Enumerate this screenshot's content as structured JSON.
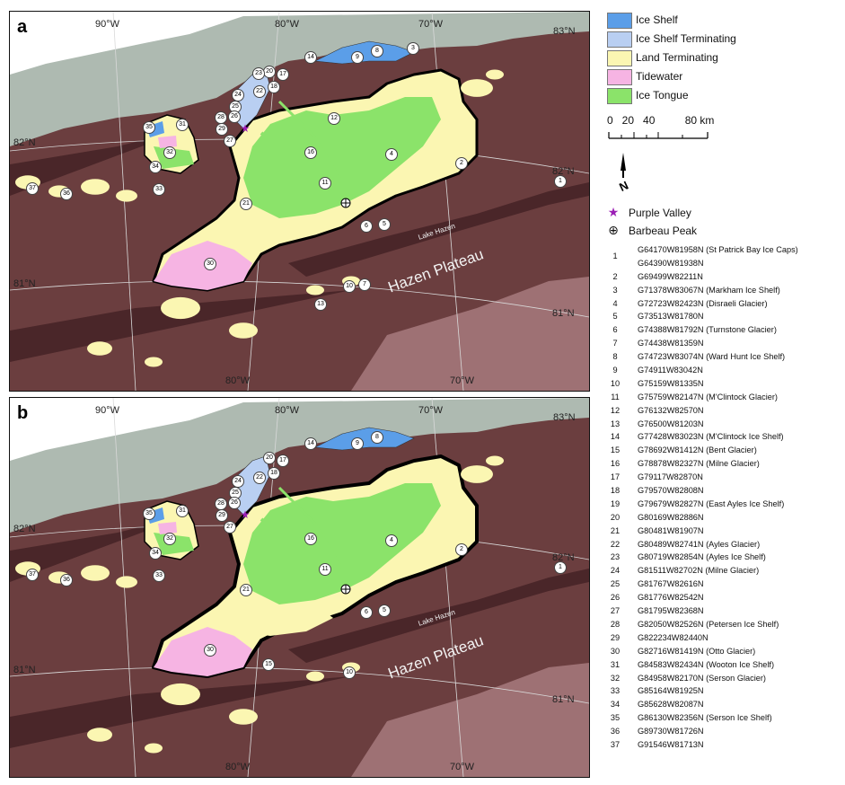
{
  "panels": [
    {
      "letter": "a"
    },
    {
      "letter": "b"
    }
  ],
  "graticule": {
    "lon_labels": [
      "90°W",
      "80°W",
      "70°W"
    ],
    "lat_labels": [
      "83°N",
      "82°N",
      "81°N"
    ]
  },
  "place_labels": {
    "lake": "Lake Hazen",
    "plateau": "Hazen Plateau"
  },
  "legend": {
    "items": [
      {
        "label": "Ice Shelf",
        "color": "#5b9ee8"
      },
      {
        "label": "Ice Shelf Terminating",
        "color": "#b9cff2"
      },
      {
        "label": "Land Terminating",
        "color": "#fbf6b2"
      },
      {
        "label": "Tidewater",
        "color": "#f6b4e3"
      },
      {
        "label": "Ice Tongue",
        "color": "#8be36a"
      }
    ],
    "scale_label": "0   20   40          80 km",
    "purple_valley": "Purple Valley",
    "barbeau_peak": "Barbeau Peak"
  },
  "colors": {
    "terrain": "#6b3e3f",
    "terrain_dark": "#4a2629",
    "sea_ice": "#aebab1",
    "ocean": "#ffffff",
    "star": "#9b1fb5"
  },
  "glacier_ids": [
    {
      "n": "1",
      "lines": [
        "G64170W81958N (St Patrick Bay Ice Caps)",
        "G64390W81938N"
      ]
    },
    {
      "n": "2",
      "lines": [
        "G69499W82211N"
      ]
    },
    {
      "n": "3",
      "lines": [
        "G71378W83067N (Markham Ice Shelf)"
      ]
    },
    {
      "n": "4",
      "lines": [
        "G72723W82423N (Disraeli Glacier)"
      ]
    },
    {
      "n": "5",
      "lines": [
        "G73513W81780N"
      ]
    },
    {
      "n": "6",
      "lines": [
        "G74388W81792N (Turnstone Glacier)"
      ]
    },
    {
      "n": "7",
      "lines": [
        "G74438W81359N"
      ]
    },
    {
      "n": "8",
      "lines": [
        "G74723W83074N (Ward Hunt Ice Shelf)"
      ]
    },
    {
      "n": "9",
      "lines": [
        "G74911W83042N"
      ]
    },
    {
      "n": "10",
      "lines": [
        "G75159W81335N"
      ]
    },
    {
      "n": "11",
      "lines": [
        "G75759W82147N (M'Clintock Glacier)"
      ]
    },
    {
      "n": "12",
      "lines": [
        "G76132W82570N"
      ]
    },
    {
      "n": "13",
      "lines": [
        "G76500W81203N"
      ]
    },
    {
      "n": "14",
      "lines": [
        "G77428W83023N (M'Clintock Ice Shelf)"
      ]
    },
    {
      "n": "15",
      "lines": [
        "G78692W81412N (Bent Glacier)"
      ]
    },
    {
      "n": "16",
      "lines": [
        "G78878W82327N (Milne Glacier)"
      ]
    },
    {
      "n": "17",
      "lines": [
        "G79117W82870N"
      ]
    },
    {
      "n": "18",
      "lines": [
        "G79570W82808N"
      ]
    },
    {
      "n": "19",
      "lines": [
        "G79679W82827N (East Ayles Ice Shelf)"
      ]
    },
    {
      "n": "20",
      "lines": [
        "G80169W82886N"
      ]
    },
    {
      "n": "21",
      "lines": [
        "G80481W81907N"
      ]
    },
    {
      "n": "22",
      "lines": [
        "G80489W82741N (Ayles Glacier)"
      ]
    },
    {
      "n": "23",
      "lines": [
        "G80719W82854N (Ayles Ice Shelf)"
      ]
    },
    {
      "n": "24",
      "lines": [
        "G81511W82702N (Milne Glacier)"
      ]
    },
    {
      "n": "25",
      "lines": [
        "G81767W82616N"
      ]
    },
    {
      "n": "26",
      "lines": [
        "G81776W82542N"
      ]
    },
    {
      "n": "27",
      "lines": [
        "G81795W82368N"
      ]
    },
    {
      "n": "28",
      "lines": [
        "G82050W82526N (Petersen Ice Shelf)"
      ]
    },
    {
      "n": "29",
      "lines": [
        "G822234W82440N"
      ]
    },
    {
      "n": "30",
      "lines": [
        "G82716W81419N (Otto Glacier)"
      ]
    },
    {
      "n": "31",
      "lines": [
        "G84583W82434N (Wooton Ice Shelf)"
      ]
    },
    {
      "n": "32",
      "lines": [
        "G84958W82170N (Serson Glacier)"
      ]
    },
    {
      "n": "33",
      "lines": [
        "G85164W81925N"
      ]
    },
    {
      "n": "34",
      "lines": [
        "G85628W82087N"
      ]
    },
    {
      "n": "35",
      "lines": [
        "G86130W82356N (Serson Ice Shelf)"
      ]
    },
    {
      "n": "36",
      "lines": [
        "G89730W81726N"
      ]
    },
    {
      "n": "37",
      "lines": [
        "G91546W81713N"
      ]
    }
  ],
  "map_labels_a": [
    "1",
    "2",
    "3",
    "4",
    "5",
    "6",
    "7",
    "8",
    "9",
    "10",
    "11",
    "12",
    "13",
    "14",
    "16",
    "17",
    "18",
    "20",
    "21",
    "22",
    "23",
    "24",
    "25",
    "26",
    "27",
    "28",
    "29",
    "30",
    "31",
    "32",
    "33",
    "34",
    "35",
    "36",
    "37"
  ],
  "map_labels_b": [
    "1",
    "2",
    "4",
    "5",
    "6",
    "8",
    "9",
    "10",
    "11",
    "14",
    "15",
    "16",
    "17",
    "18",
    "20",
    "21",
    "22",
    "24",
    "25",
    "26",
    "27",
    "28",
    "29",
    "30",
    "31",
    "32",
    "33",
    "34",
    "35",
    "36",
    "37"
  ]
}
